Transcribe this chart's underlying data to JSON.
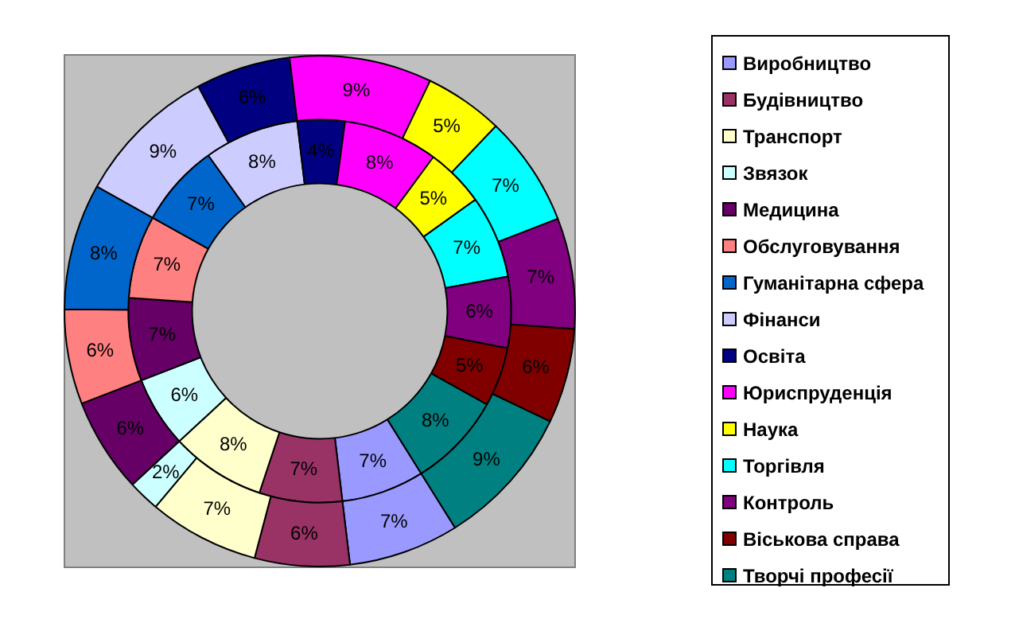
{
  "chart_data": {
    "type": "donut",
    "categories": [
      "Виробництво",
      "Будівництво",
      "Транспорт",
      "Звязок",
      "Медицина",
      "Обслуговування",
      "Гуманітарна сфера",
      "Фінанси",
      "Освіта",
      "Юриспруденція",
      "Наука",
      "Торгівля",
      "Контроль",
      "Віськова справа",
      "Творчі професії"
    ],
    "colors": [
      "#9999ff",
      "#993366",
      "#ffffcc",
      "#ccffff",
      "#660066",
      "#ff8080",
      "#0066cc",
      "#ccccff",
      "#000080",
      "#ff00ff",
      "#ffff00",
      "#00ffff",
      "#800080",
      "#800000",
      "#008080"
    ],
    "series": [
      {
        "values": [
          7,
          6,
          7,
          2,
          6,
          6,
          8,
          9,
          6,
          9,
          5,
          7,
          7,
          6,
          9
        ],
        "value_labels": [
          "7%",
          "6%",
          "7%",
          "2%",
          "6%",
          "6%",
          "8%",
          "9%",
          "6%",
          "9%",
          "5%",
          "7%",
          "7%",
          "6%",
          "9%"
        ]
      },
      {
        "values": [
          7,
          7,
          8,
          6,
          7,
          7,
          7,
          8,
          4,
          8,
          5,
          7,
          6,
          5,
          8
        ],
        "value_labels": [
          "7%",
          "7%",
          "8%",
          "6%",
          "7%",
          "7%",
          "7%",
          "8%",
          "4%",
          "8%",
          "5%",
          "7%",
          "6%",
          "5%",
          "8%"
        ]
      }
    ],
    "legend": "right"
  }
}
